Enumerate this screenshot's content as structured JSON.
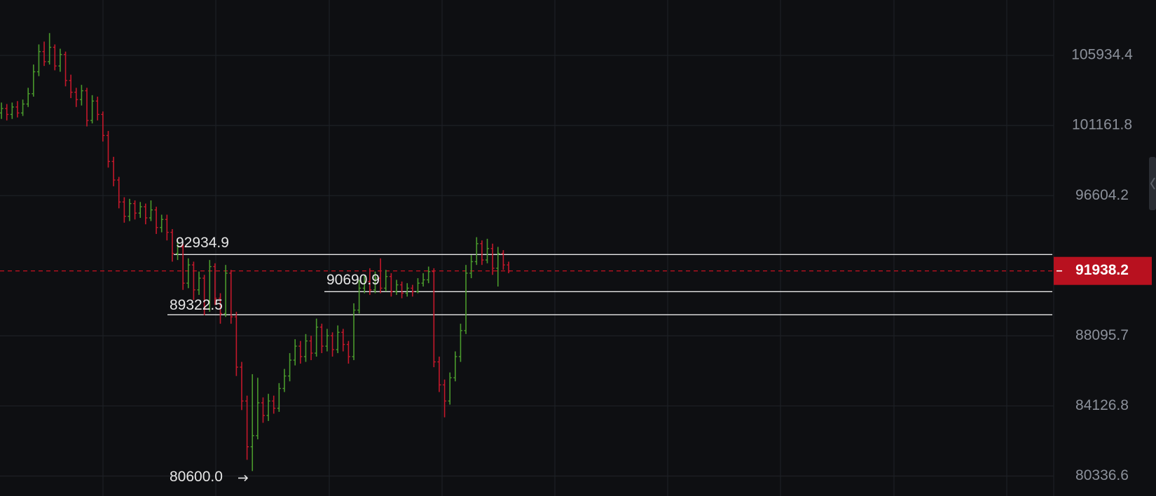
{
  "chart_data": {
    "type": "ohlc",
    "log_scale": true,
    "grid": true,
    "up_color": "#4a9a2c",
    "down_color": "#c4182b",
    "ylim": [
      79290,
      109864
    ],
    "yticks": [
      80336.6,
      84126.8,
      88095.7,
      96604.2,
      101161.8,
      105934.4
    ],
    "open": [
      102000,
      102300,
      101900,
      102400,
      102000,
      102600,
      103300,
      104800,
      106200,
      105500,
      106500,
      105200,
      106000,
      104200,
      103400,
      102900,
      103500,
      101500,
      102800,
      101900,
      100500,
      98800,
      97600,
      96200,
      95300,
      96100,
      95500,
      95900,
      95200,
      95700,
      94600,
      95100,
      94300,
      93000,
      93400,
      91200,
      92300,
      90800,
      91500,
      89700,
      92200,
      90300,
      89400,
      91800,
      89200,
      86300,
      84400,
      81900,
      82500,
      84300,
      83600,
      84400,
      84000,
      85100,
      85800,
      86700,
      87500,
      86900,
      87800,
      87100,
      88600,
      87500,
      88100,
      87300,
      88300,
      87600,
      86900,
      89600,
      90900,
      91300,
      90800,
      91500,
      90900,
      91600,
      90700,
      91100,
      90600,
      90900,
      90700,
      91200,
      91400,
      91900,
      86600,
      85300,
      84400,
      85700,
      86900,
      88400,
      91800,
      92500,
      93600,
      92600,
      93300,
      92100,
      93000,
      92300
    ],
    "high": [
      102700,
      102600,
      102700,
      102800,
      102900,
      103700,
      105300,
      106700,
      106900,
      107500,
      106700,
      106400,
      106200,
      104600,
      103700,
      103900,
      103700,
      103200,
      103100,
      102100,
      100800,
      99100,
      97800,
      96500,
      96400,
      96300,
      96200,
      96100,
      96300,
      95900,
      95400,
      95400,
      94500,
      93800,
      93600,
      92700,
      92500,
      91900,
      91700,
      92600,
      92400,
      90600,
      92300,
      92000,
      89500,
      86600,
      84700,
      85900,
      85700,
      84600,
      84800,
      84700,
      85400,
      86200,
      87100,
      87900,
      87800,
      88200,
      88100,
      89100,
      88800,
      88500,
      88300,
      88700,
      88500,
      87800,
      90000,
      91400,
      91700,
      92100,
      91900,
      92700,
      92000,
      91800,
      91400,
      91300,
      91200,
      91100,
      91500,
      91800,
      92200,
      92100,
      86900,
      85600,
      86000,
      87200,
      88800,
      92300,
      92900,
      94000,
      93800,
      93900,
      93600,
      93400,
      93200,
      92500
    ],
    "low": [
      101600,
      101500,
      101600,
      101700,
      101800,
      102400,
      103100,
      104500,
      105200,
      105300,
      104900,
      104800,
      103800,
      103000,
      102400,
      102500,
      101100,
      101300,
      101500,
      100100,
      98400,
      97200,
      95800,
      94900,
      95000,
      95100,
      95200,
      94800,
      95000,
      94200,
      94300,
      93800,
      92500,
      92600,
      90800,
      90900,
      90200,
      90500,
      89300,
      89500,
      89900,
      88800,
      89200,
      88800,
      85800,
      83900,
      81200,
      80600,
      82300,
      83200,
      83300,
      83700,
      83800,
      84900,
      85500,
      86400,
      86500,
      86600,
      86700,
      86900,
      87100,
      87200,
      86900,
      87100,
      87200,
      86500,
      86700,
      89400,
      90600,
      90500,
      90600,
      90600,
      90700,
      90400,
      90500,
      90300,
      90400,
      90400,
      90600,
      91000,
      91200,
      86300,
      84900,
      83500,
      84200,
      85500,
      86600,
      88200,
      91500,
      92300,
      92300,
      92400,
      91700,
      91000,
      92000,
      91800
    ],
    "close": [
      102300,
      101900,
      102400,
      102000,
      102600,
      103300,
      104800,
      106200,
      105500,
      106500,
      105200,
      106000,
      104200,
      103400,
      102900,
      103500,
      101500,
      102800,
      101900,
      100500,
      98800,
      97600,
      96200,
      95300,
      96100,
      95500,
      95900,
      95200,
      95700,
      94600,
      95100,
      94300,
      93000,
      93400,
      91200,
      92300,
      90800,
      91500,
      89700,
      92200,
      90300,
      89400,
      91800,
      89200,
      86300,
      84400,
      81900,
      82500,
      84300,
      83600,
      84400,
      84000,
      85100,
      85800,
      86700,
      87500,
      86900,
      87800,
      87100,
      88600,
      87500,
      88100,
      87300,
      88300,
      87600,
      86900,
      89600,
      90900,
      91300,
      90800,
      91500,
      90900,
      91600,
      90700,
      91100,
      90600,
      90900,
      90700,
      91200,
      91400,
      91900,
      86600,
      85300,
      84400,
      85700,
      86900,
      88400,
      91800,
      92500,
      93600,
      92600,
      93300,
      92100,
      93000,
      92300,
      91938.2
    ],
    "levels": [
      92934.9,
      90690.9,
      89322.5
    ],
    "level_color": "#e8e8e8",
    "current_price": 91938.2,
    "current_color": "#b8111f",
    "low_marker": {
      "value": 80600,
      "label": "80600.0"
    }
  }
}
